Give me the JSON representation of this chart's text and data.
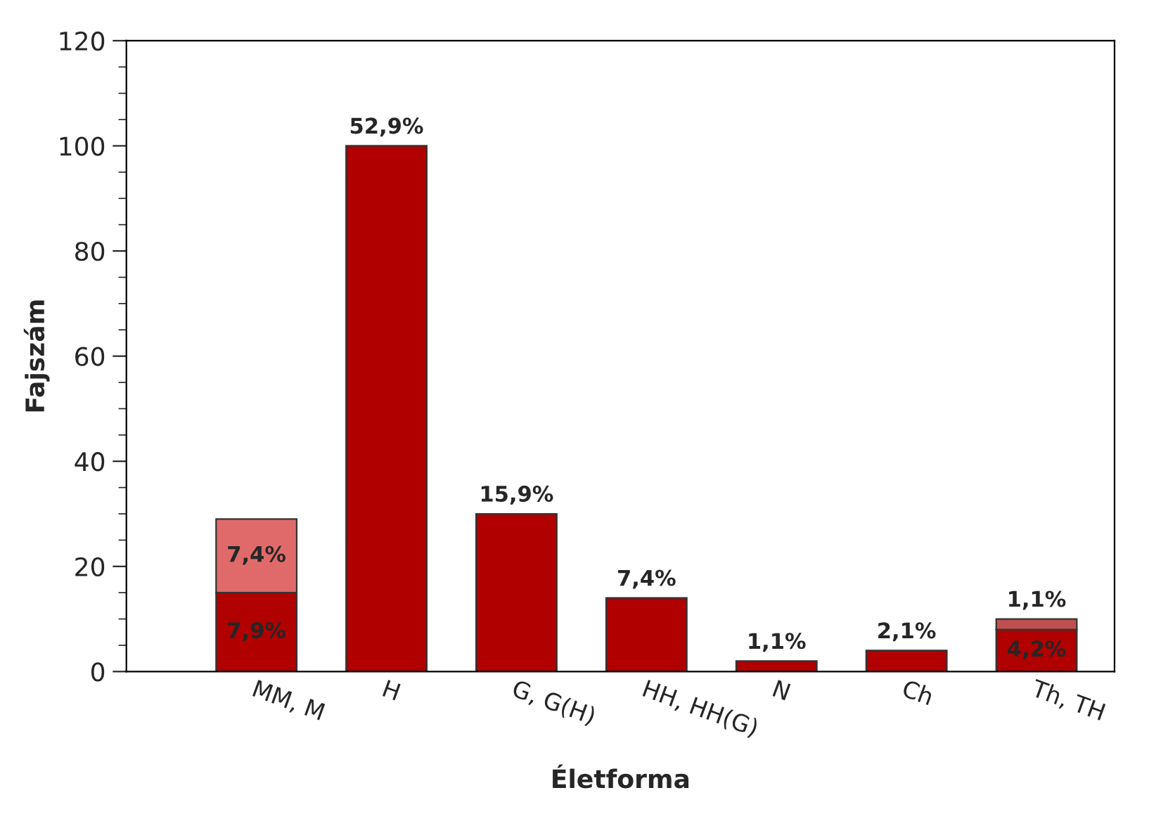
{
  "chart_data": {
    "type": "bar",
    "stacked": true,
    "xlabel": "Életforma",
    "ylabel": "Fajszám",
    "categories": [
      "MM, M",
      "H",
      "G, G(H)",
      "HH, HH(G)",
      "N",
      "Ch",
      "Th, TH"
    ],
    "series": [
      {
        "colors": [
          "#b00000",
          "#b00000",
          "#b00000",
          "#b00000",
          "#b00000",
          "#b00000",
          "#b00000"
        ],
        "values": [
          15,
          100,
          30,
          14,
          2,
          4,
          8
        ]
      },
      {
        "colors": [
          "#e06a6a",
          null,
          null,
          null,
          null,
          null,
          "#c05050"
        ],
        "values": [
          14,
          null,
          null,
          null,
          null,
          null,
          2
        ]
      }
    ],
    "annotations": [
      {
        "text": "7,9%",
        "x": "MM, M",
        "y": 15
      },
      {
        "text": "7,4%",
        "x": "MM, M",
        "y": 29
      },
      {
        "text": "52,9%",
        "x": "H",
        "y": 100
      },
      {
        "text": "15,9%",
        "x": "G, G(H)",
        "y": 30
      },
      {
        "text": "7,4%",
        "x": "HH, HH(G)",
        "y": 14
      },
      {
        "text": "1,1%",
        "x": "N",
        "y": 2
      },
      {
        "text": "2,1%",
        "x": "Ch",
        "y": 4
      },
      {
        "text": "4,2%",
        "x": "Th, TH",
        "y": 8
      },
      {
        "text": "1,1%",
        "x": "Th, TH",
        "y": 10
      }
    ],
    "ylim": [
      0,
      120
    ],
    "yticks": [
      0,
      20,
      40,
      60,
      80,
      100,
      120
    ],
    "grid": false,
    "legend": false
  }
}
